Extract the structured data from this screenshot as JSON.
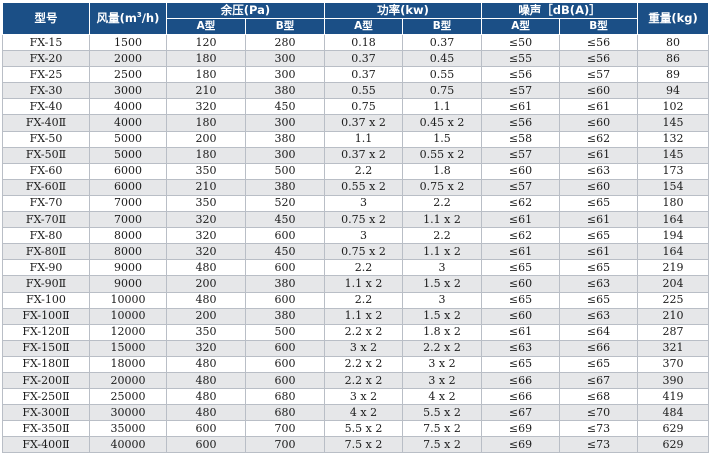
{
  "header": {
    "model": "型号",
    "airflow": "风量(m",
    "airflow_sup": "3",
    "airflow_unit": "/h)",
    "pressure": "余压(Pa)",
    "power": "功率(kw)",
    "noise": "噪声［dB(A)］",
    "weight": "重量(kg)",
    "type_a": "A型",
    "type_b": "B型"
  },
  "rows": [
    [
      "FX-15",
      "1500",
      "120",
      "280",
      "0.18",
      "0.37",
      "≤50",
      "≤56",
      "80"
    ],
    [
      "FX-20",
      "2000",
      "180",
      "300",
      "0.37",
      "0.45",
      "≤55",
      "≤56",
      "86"
    ],
    [
      "FX-25",
      "2500",
      "180",
      "300",
      "0.37",
      "0.55",
      "≤56",
      "≤57",
      "89"
    ],
    [
      "FX-30",
      "3000",
      "210",
      "380",
      "0.55",
      "0.75",
      "≤57",
      "≤60",
      "94"
    ],
    [
      "FX-40",
      "4000",
      "320",
      "450",
      "0.75",
      "1.1",
      "≤61",
      "≤61",
      "102"
    ],
    [
      "FX-40Ⅱ",
      "4000",
      "180",
      "300",
      "0.37 x 2",
      "0.45 x 2",
      "≤56",
      "≤60",
      "145"
    ],
    [
      "FX-50",
      "5000",
      "200",
      "380",
      "1.1",
      "1.5",
      "≤58",
      "≤62",
      "132"
    ],
    [
      "FX-50Ⅱ",
      "5000",
      "180",
      "300",
      "0.37 x 2",
      "0.55 x 2",
      "≤57",
      "≤61",
      "145"
    ],
    [
      "FX-60",
      "6000",
      "350",
      "500",
      "2.2",
      "1.8",
      "≤60",
      "≤63",
      "173"
    ],
    [
      "FX-60Ⅱ",
      "6000",
      "210",
      "380",
      "0.55 x 2",
      "0.75 x 2",
      "≤57",
      "≤60",
      "154"
    ],
    [
      "FX-70",
      "7000",
      "350",
      "520",
      "3",
      "2.2",
      "≤62",
      "≤65",
      "180"
    ],
    [
      "FX-70Ⅱ",
      "7000",
      "320",
      "450",
      "0.75 x 2",
      "1.1 x 2",
      "≤61",
      "≤61",
      "164"
    ],
    [
      "FX-80",
      "8000",
      "320",
      "600",
      "3",
      "2.2",
      "≤62",
      "≤65",
      "194"
    ],
    [
      "FX-80Ⅱ",
      "8000",
      "320",
      "450",
      "0.75 x 2",
      "1.1 x 2",
      "≤61",
      "≤61",
      "164"
    ],
    [
      "FX-90",
      "9000",
      "480",
      "600",
      "2.2",
      "3",
      "≤65",
      "≤65",
      "219"
    ],
    [
      "FX-90Ⅱ",
      "9000",
      "200",
      "380",
      "1.1 x 2",
      "1.5 x 2",
      "≤60",
      "≤63",
      "204"
    ],
    [
      "FX-100",
      "10000",
      "480",
      "600",
      "2.2",
      "3",
      "≤65",
      "≤65",
      "225"
    ],
    [
      "FX-100Ⅱ",
      "10000",
      "200",
      "380",
      "1.1 x 2",
      "1.5 x 2",
      "≤60",
      "≤63",
      "210"
    ],
    [
      "FX-120Ⅱ",
      "12000",
      "350",
      "500",
      "2.2 x 2",
      "1.8 x 2",
      "≤61",
      "≤64",
      "287"
    ],
    [
      "FX-150Ⅱ",
      "15000",
      "320",
      "600",
      "3 x 2",
      "2.2 x 2",
      "≤63",
      "≤66",
      "321"
    ],
    [
      "FX-180Ⅱ",
      "18000",
      "480",
      "600",
      "2.2 x 2",
      "3 x 2",
      "≤65",
      "≤65",
      "370"
    ],
    [
      "FX-200Ⅱ",
      "20000",
      "480",
      "600",
      "2.2 x 2",
      "3 x 2",
      "≤66",
      "≤67",
      "390"
    ],
    [
      "FX-250Ⅱ",
      "25000",
      "480",
      "680",
      "3 x 2",
      "4 x 2",
      "≤66",
      "≤68",
      "419"
    ],
    [
      "FX-300Ⅱ",
      "30000",
      "480",
      "680",
      "4 x 2",
      "5.5 x 2",
      "≤67",
      "≤70",
      "484"
    ],
    [
      "FX-350Ⅱ",
      "35000",
      "600",
      "700",
      "5.5 x 2",
      "7.5 x 2",
      "≤69",
      "≤73",
      "629"
    ],
    [
      "FX-400Ⅱ",
      "40000",
      "600",
      "700",
      "7.5 x 2",
      "7.5 x 2",
      "≤69",
      "≤73",
      "629"
    ]
  ],
  "colors": {
    "header_bg": "#1b4f86",
    "header_text": "#ffffff",
    "row_alt_bg": "#e6e7e9",
    "border": "#b9bec6"
  }
}
